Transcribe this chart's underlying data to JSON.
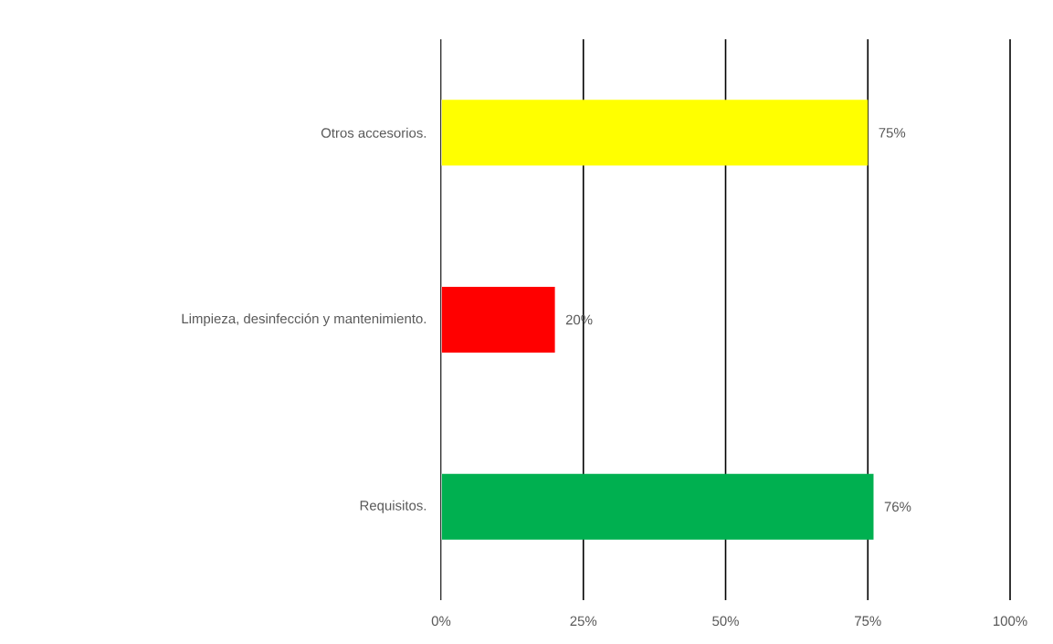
{
  "chart_data": {
    "type": "bar",
    "orientation": "horizontal",
    "categories": [
      "Otros accesorios.",
      "Limpieza, desinfección y mantenimiento.",
      "Requisitos."
    ],
    "values": [
      75,
      20,
      76
    ],
    "colors": [
      "#ffff00",
      "#ff0000",
      "#00b050"
    ],
    "value_labels": [
      "75%",
      "20%",
      "76%"
    ],
    "xlim": [
      0,
      100
    ],
    "xticks": [
      {
        "value": 0,
        "label": "0%"
      },
      {
        "value": 25,
        "label": "25%"
      },
      {
        "value": 50,
        "label": "50%"
      },
      {
        "value": 75,
        "label": "75%"
      },
      {
        "value": 100,
        "label": "100%"
      }
    ],
    "grid": "x"
  }
}
